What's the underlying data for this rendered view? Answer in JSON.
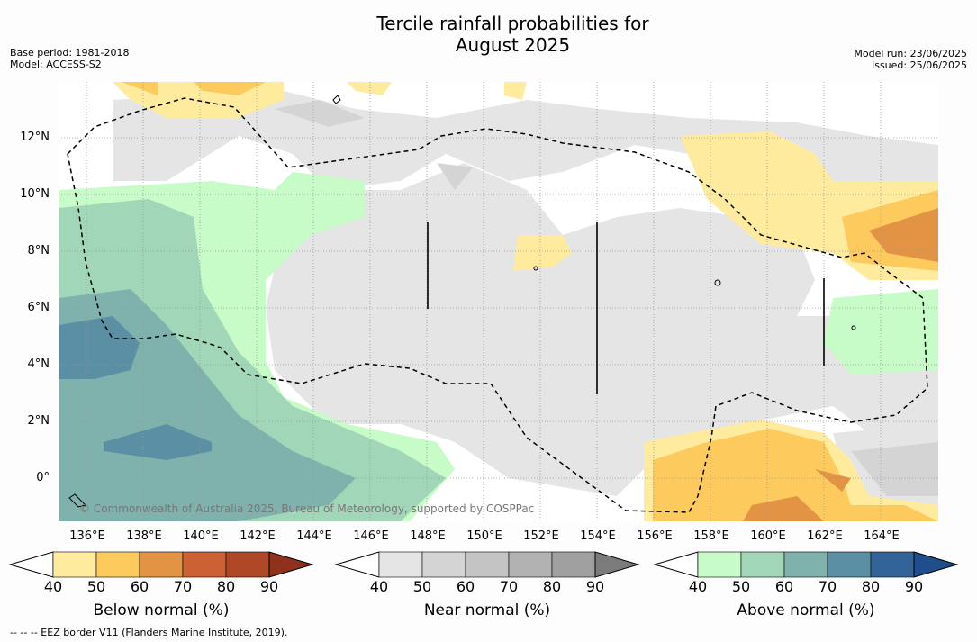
{
  "title_line1": "Tercile rainfall probabilities for",
  "title_line2": "August 2025",
  "meta_left": [
    "Base period: 1981-2018",
    "Model: ACCESS-S2"
  ],
  "meta_right": [
    "Model run: 23/06/2025",
    "Issued: 25/06/2025"
  ],
  "copyright": "© Commonwealth of Australia 2025, Bureau of Meteorology, supported by COSPPac",
  "lat_labels": [
    "12°N",
    "10°N",
    "8°N",
    "6°N",
    "4°N",
    "2°N",
    "0°"
  ],
  "lon_labels": [
    "136°E",
    "138°E",
    "140°E",
    "142°E",
    "144°E",
    "146°E",
    "148°E",
    "150°E",
    "152°E",
    "154°E",
    "156°E",
    "158°E",
    "160°E",
    "162°E",
    "164°E"
  ],
  "colorbars": [
    {
      "title": "Below normal (%)",
      "ticks": [
        "40",
        "50",
        "60",
        "70",
        "80",
        "90"
      ],
      "colors": [
        "#ffffff",
        "#ffeb9e",
        "#fdca5e",
        "#e29344",
        "#cc6233",
        "#af4826",
        "#8e321d"
      ]
    },
    {
      "title": "Near normal (%)",
      "ticks": [
        "40",
        "50",
        "60",
        "70",
        "80",
        "90"
      ],
      "colors": [
        "#ffffff",
        "#e5e5e5",
        "#d4d4d4",
        "#c4c4c4",
        "#b2b2b2",
        "#a0a0a0",
        "#7b7b7b"
      ]
    },
    {
      "title": "Above normal (%)",
      "ticks": [
        "40",
        "50",
        "60",
        "70",
        "80",
        "90"
      ],
      "colors": [
        "#ffffff",
        "#c7fbc7",
        "#a2d6b8",
        "#7fb2ad",
        "#5b8fa3",
        "#336499",
        "#1f4e8a"
      ]
    }
  ],
  "footer": "--  --  -- EEZ border V11 (Flanders Marine Institute, 2019)."
}
